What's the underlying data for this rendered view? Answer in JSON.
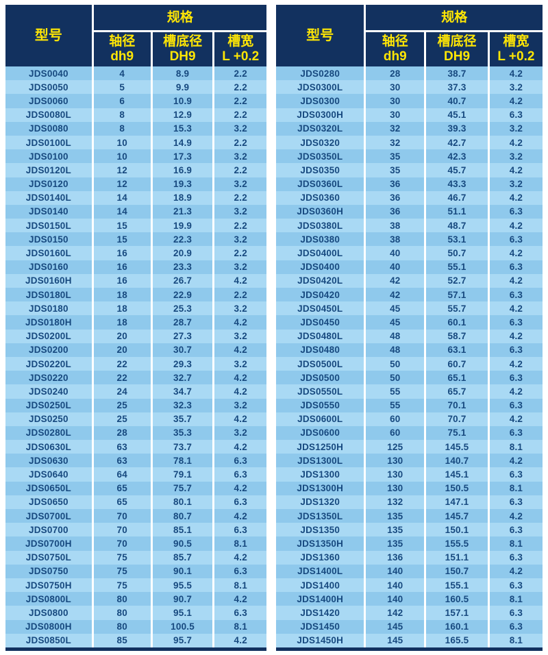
{
  "colors": {
    "header_bg": "#12315f",
    "header_text": "#ffe605",
    "row_odd": "#8fc9ec",
    "row_even": "#a9d9f4",
    "body_text": "#17497f"
  },
  "header": {
    "model_label": "型号",
    "spec_label": "规格",
    "columns": [
      {
        "line1": "轴径",
        "line2": "dh9"
      },
      {
        "line1": "槽底径",
        "line2": "DH9"
      },
      {
        "line1": "槽宽",
        "line2": "L +0.2"
      }
    ]
  },
  "tables": [
    {
      "side": "left",
      "rows": [
        [
          "JDS0040",
          "4",
          "8.9",
          "2.2"
        ],
        [
          "JDS0050",
          "5",
          "9.9",
          "2.2"
        ],
        [
          "JDS0060",
          "6",
          "10.9",
          "2.2"
        ],
        [
          "JDS0080L",
          "8",
          "12.9",
          "2.2"
        ],
        [
          "JDS0080",
          "8",
          "15.3",
          "3.2"
        ],
        [
          "JDS0100L",
          "10",
          "14.9",
          "2.2"
        ],
        [
          "JDS0100",
          "10",
          "17.3",
          "3.2"
        ],
        [
          "JDS0120L",
          "12",
          "16.9",
          "2.2"
        ],
        [
          "JDS0120",
          "12",
          "19.3",
          "3.2"
        ],
        [
          "JDS0140L",
          "14",
          "18.9",
          "2.2"
        ],
        [
          "JDS0140",
          "14",
          "21.3",
          "3.2"
        ],
        [
          "JDS0150L",
          "15",
          "19.9",
          "2.2"
        ],
        [
          "JDS0150",
          "15",
          "22.3",
          "3.2"
        ],
        [
          "JDS0160L",
          "16",
          "20.9",
          "2.2"
        ],
        [
          "JDS0160",
          "16",
          "23.3",
          "3.2"
        ],
        [
          "JDS0160H",
          "16",
          "26.7",
          "4.2"
        ],
        [
          "JDS0180L",
          "18",
          "22.9",
          "2.2"
        ],
        [
          "JDS0180",
          "18",
          "25.3",
          "3.2"
        ],
        [
          "JDS0180H",
          "18",
          "28.7",
          "4.2"
        ],
        [
          "JDS0200L",
          "20",
          "27.3",
          "3.2"
        ],
        [
          "JDS0200",
          "20",
          "30.7",
          "4.2"
        ],
        [
          "JDS0220L",
          "22",
          "29.3",
          "3.2"
        ],
        [
          "JDS0220",
          "22",
          "32.7",
          "4.2"
        ],
        [
          "JDS0240",
          "24",
          "34.7",
          "4.2"
        ],
        [
          "JDS0250L",
          "25",
          "32.3",
          "3.2"
        ],
        [
          "JDS0250",
          "25",
          "35.7",
          "4.2"
        ],
        [
          "JDS0280L",
          "28",
          "35.3",
          "3.2"
        ],
        [
          "JDS0630L",
          "63",
          "73.7",
          "4.2"
        ],
        [
          "JDS0630",
          "63",
          "78.1",
          "6.3"
        ],
        [
          "JDS0640",
          "64",
          "79.1",
          "6.3"
        ],
        [
          "JDS0650L",
          "65",
          "75.7",
          "4.2"
        ],
        [
          "JDS0650",
          "65",
          "80.1",
          "6.3"
        ],
        [
          "JDS0700L",
          "70",
          "80.7",
          "4.2"
        ],
        [
          "JDS0700",
          "70",
          "85.1",
          "6.3"
        ],
        [
          "JDS0700H",
          "70",
          "90.5",
          "8.1"
        ],
        [
          "JDS0750L",
          "75",
          "85.7",
          "4.2"
        ],
        [
          "JDS0750",
          "75",
          "90.1",
          "6.3"
        ],
        [
          "JDS0750H",
          "75",
          "95.5",
          "8.1"
        ],
        [
          "JDS0800L",
          "80",
          "90.7",
          "4.2"
        ],
        [
          "JDS0800",
          "80",
          "95.1",
          "6.3"
        ],
        [
          "JDS0800H",
          "80",
          "100.5",
          "8.1"
        ],
        [
          "JDS0850L",
          "85",
          "95.7",
          "4.2"
        ]
      ]
    },
    {
      "side": "right",
      "rows": [
        [
          "JDS0280",
          "28",
          "38.7",
          "4.2"
        ],
        [
          "JDS0300L",
          "30",
          "37.3",
          "3.2"
        ],
        [
          "JDS0300",
          "30",
          "40.7",
          "4.2"
        ],
        [
          "JDS0300H",
          "30",
          "45.1",
          "6.3"
        ],
        [
          "JDS0320L",
          "32",
          "39.3",
          "3.2"
        ],
        [
          "JDS0320",
          "32",
          "42.7",
          "4.2"
        ],
        [
          "JDS0350L",
          "35",
          "42.3",
          "3.2"
        ],
        [
          "JDS0350",
          "35",
          "45.7",
          "4.2"
        ],
        [
          "JDS0360L",
          "36",
          "43.3",
          "3.2"
        ],
        [
          "JDS0360",
          "36",
          "46.7",
          "4.2"
        ],
        [
          "JDS0360H",
          "36",
          "51.1",
          "6.3"
        ],
        [
          "JDS0380L",
          "38",
          "48.7",
          "4.2"
        ],
        [
          "JDS0380",
          "38",
          "53.1",
          "6.3"
        ],
        [
          "JDS0400L",
          "40",
          "50.7",
          "4.2"
        ],
        [
          "JDS0400",
          "40",
          "55.1",
          "6.3"
        ],
        [
          "JDS0420L",
          "42",
          "52.7",
          "4.2"
        ],
        [
          "JDS0420",
          "42",
          "57.1",
          "6.3"
        ],
        [
          "JDS0450L",
          "45",
          "55.7",
          "4.2"
        ],
        [
          "JDS0450",
          "45",
          "60.1",
          "6.3"
        ],
        [
          "JDS0480L",
          "48",
          "58.7",
          "4.2"
        ],
        [
          "JDS0480",
          "48",
          "63.1",
          "6.3"
        ],
        [
          "JDS0500L",
          "50",
          "60.7",
          "4.2"
        ],
        [
          "JDS0500",
          "50",
          "65.1",
          "6.3"
        ],
        [
          "JDS0550L",
          "55",
          "65.7",
          "4.2"
        ],
        [
          "JDS0550",
          "55",
          "70.1",
          "6.3"
        ],
        [
          "JDS0600L",
          "60",
          "70.7",
          "4.2"
        ],
        [
          "JDS0600",
          "60",
          "75.1",
          "6.3"
        ],
        [
          "JDS1250H",
          "125",
          "145.5",
          "8.1"
        ],
        [
          "JDS1300L",
          "130",
          "140.7",
          "4.2"
        ],
        [
          "JDS1300",
          "130",
          "145.1",
          "6.3"
        ],
        [
          "JDS1300H",
          "130",
          "150.5",
          "8.1"
        ],
        [
          "JDS1320",
          "132",
          "147.1",
          "6.3"
        ],
        [
          "JDS1350L",
          "135",
          "145.7",
          "4.2"
        ],
        [
          "JDS1350",
          "135",
          "150.1",
          "6.3"
        ],
        [
          "JDS1350H",
          "135",
          "155.5",
          "8.1"
        ],
        [
          "JDS1360",
          "136",
          "151.1",
          "6.3"
        ],
        [
          "JDS1400L",
          "140",
          "150.7",
          "4.2"
        ],
        [
          "JDS1400",
          "140",
          "155.1",
          "6.3"
        ],
        [
          "JDS1400H",
          "140",
          "160.5",
          "8.1"
        ],
        [
          "JDS1420",
          "142",
          "157.1",
          "6.3"
        ],
        [
          "JDS1450",
          "145",
          "160.1",
          "6.3"
        ],
        [
          "JDS1450H",
          "145",
          "165.5",
          "8.1"
        ]
      ]
    }
  ]
}
